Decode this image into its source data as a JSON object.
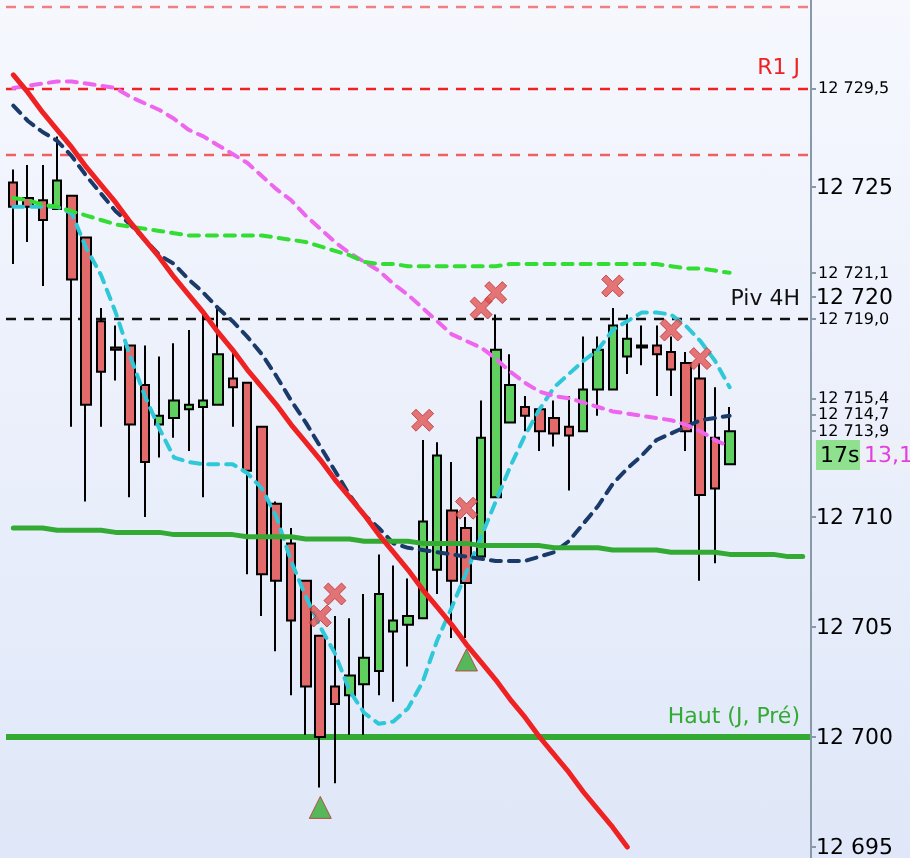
{
  "chart_data": {
    "type": "candlestick",
    "categories": [
      null,
      null,
      null,
      null,
      null,
      null,
      null,
      null,
      null,
      null,
      null,
      null,
      null,
      null,
      null,
      null,
      null,
      null,
      null,
      null,
      null,
      null,
      null,
      null,
      null,
      null,
      null,
      null,
      null,
      null,
      null,
      null,
      null,
      null,
      null,
      null,
      null,
      null,
      null,
      null,
      null,
      null,
      null,
      null,
      null,
      null,
      null,
      null,
      null,
      null,
      null,
      null,
      null,
      null,
      null
    ],
    "ohlc": [
      [
        12725.2,
        12725.8,
        12721.5,
        12724.1
      ],
      [
        12724.5,
        12726.0,
        12722.5,
        12724.1
      ],
      [
        12724.4,
        12726.0,
        12720.5,
        12723.5
      ],
      [
        12724.0,
        12727.3,
        12724.0,
        12725.3
      ],
      [
        12724.6,
        12724.6,
        12714.1,
        12720.8
      ],
      [
        12722.7,
        12722.7,
        12710.7,
        12715.1
      ],
      [
        12718.9,
        12719.5,
        12714.1,
        12716.6
      ],
      [
        12717.7,
        12718.7,
        12716.2,
        12717.6
      ],
      [
        12717.8,
        12717.8,
        12710.9,
        12714.2
      ],
      [
        12716.0,
        12717.8,
        12710.0,
        12712.5
      ],
      [
        12714.2,
        12717.3,
        12712.7,
        12714.6
      ],
      [
        12714.5,
        12717.9,
        12713.6,
        12715.3
      ],
      [
        12714.9,
        12718.5,
        12713.0,
        12715.1
      ],
      [
        12715.0,
        12719.2,
        12710.9,
        12715.3
      ],
      [
        12715.1,
        12719.5,
        12715.1,
        12717.4
      ],
      [
        12716.3,
        12717.5,
        12714.1,
        12715.9
      ],
      [
        12716.1,
        12716.1,
        12707.4,
        12712.1
      ],
      [
        12714.1,
        12714.1,
        12705.5,
        12707.4
      ],
      [
        12710.6,
        12710.7,
        12703.9,
        12707.1
      ],
      [
        12708.8,
        12709.5,
        12701.9,
        12705.3
      ],
      [
        12707.1,
        12707.1,
        12700.1,
        12702.3
      ],
      [
        12704.6,
        12704.6,
        12697.7,
        12700.0
      ],
      [
        12702.3,
        12705.5,
        12697.9,
        12701.5
      ],
      [
        12701.9,
        12705.4,
        12700.1,
        12702.8
      ],
      [
        12702.4,
        12706.5,
        12700.1,
        12703.6
      ],
      [
        12703.0,
        12708.3,
        12701.9,
        12706.5
      ],
      [
        12704.8,
        12707.8,
        12701.6,
        12705.3
      ],
      [
        12705.1,
        12707.2,
        12703.2,
        12705.5
      ],
      [
        12705.4,
        12713.5,
        12705.4,
        12709.8
      ],
      [
        12707.6,
        12713.4,
        12706.5,
        12712.8
      ],
      [
        12710.3,
        12712.5,
        12704.5,
        12707.1
      ],
      [
        12709.5,
        12710.0,
        12704.5,
        12707.0
      ],
      [
        12708.2,
        12715.3,
        12708.2,
        12713.6
      ],
      [
        12710.9,
        12719.2,
        12710.9,
        12717.6
      ],
      [
        12714.3,
        12717.4,
        12714.3,
        12716.0
      ],
      [
        12715.0,
        12715.5,
        12713.9,
        12714.6
      ],
      [
        12714.9,
        12714.9,
        12713.0,
        12713.9
      ],
      [
        12714.5,
        12715.3,
        12713.2,
        12713.8
      ],
      [
        12714.1,
        12715.5,
        12711.2,
        12713.7
      ],
      [
        12713.9,
        12718.2,
        12713.9,
        12715.8
      ],
      [
        12715.8,
        12718.2,
        12714.6,
        12717.6
      ],
      [
        12715.8,
        12719.5,
        12715.8,
        12718.7
      ],
      [
        12717.3,
        12719.2,
        12716.5,
        12718.1
      ],
      [
        12717.7,
        12718.7,
        12716.9,
        12717.8
      ],
      [
        12717.8,
        12718.7,
        12715.5,
        12717.4
      ],
      [
        12717.5,
        12718.2,
        12715.5,
        12716.7
      ],
      [
        12717.0,
        12717.5,
        12713.0,
        12713.9
      ],
      [
        12716.3,
        12717.0,
        12707.1,
        12711.0
      ],
      [
        12713.6,
        12715.9,
        12707.9,
        12711.3
      ],
      [
        12712.4,
        12715.0,
        12712.4,
        12713.9
      ],
      null,
      null,
      null,
      null,
      null
    ],
    "series": [
      {
        "type": "line",
        "color": "#2ec8d8",
        "line_style": "dashed",
        "marker": "none",
        "values": [
          12724.1,
          12724.1,
          12724.1,
          12724.1,
          12723.8,
          12722.2,
          12721.0,
          12719.3,
          12717.3,
          12715.5,
          12714.0,
          12712.7,
          12712.5,
          12712.4,
          12712.4,
          12712.4,
          12712.0,
          12711.3,
          12710.0,
          12708.0,
          12706.4,
          12705.0,
          12703.8,
          12702.1,
          12701.1,
          12700.6,
          12700.7,
          12701.3,
          12702.5,
          12704.4,
          12705.9,
          12707.5,
          12709.1,
          12710.7,
          12712.3,
          12713.7,
          12714.9,
          12715.9,
          12716.5,
          12717.1,
          12717.6,
          12718.5,
          12718.9,
          12719.3,
          12719.3,
          12719.2,
          12718.7,
          12718.0,
          12717.1,
          12715.9,
          null,
          null,
          null,
          null,
          null
        ]
      },
      {
        "type": "line",
        "color": "#1a3a6a",
        "line_style": "dashed",
        "marker": "none",
        "values": [
          12728.7,
          12728.0,
          12727.5,
          12727.1,
          12726.4,
          12725.5,
          12724.7,
          12723.9,
          12723.3,
          12722.6,
          12721.9,
          12721.5,
          12720.8,
          12720.2,
          12719.5,
          12718.9,
          12718.2,
          12717.4,
          12716.4,
          12715.3,
          12714.3,
          12713.2,
          12712.1,
          12711.0,
          12710.1,
          12709.5,
          12708.8,
          12708.6,
          12708.5,
          12708.4,
          12708.3,
          12708.2,
          12708.1,
          12708.0,
          12708.0,
          12708.0,
          12708.2,
          12708.4,
          12708.9,
          12709.7,
          12710.5,
          12711.5,
          12712.2,
          12712.8,
          12713.5,
          12713.8,
          12714.1,
          12714.4,
          12714.5,
          12714.6,
          null,
          null,
          null,
          null,
          null
        ]
      },
      {
        "type": "line",
        "color": "#ee66ee",
        "line_style": "dashed",
        "marker": "none",
        "values": [
          12729.5,
          12729.6,
          12729.7,
          12729.8,
          12729.8,
          12729.7,
          12729.6,
          12729.5,
          12729.1,
          12728.8,
          12728.5,
          12728.1,
          12727.6,
          12727.3,
          12726.9,
          12726.5,
          12726.1,
          12725.5,
          12724.9,
          12724.4,
          12723.7,
          12723.1,
          12722.5,
          12722.0,
          12721.6,
          12721.2,
          12720.6,
          12720.1,
          12719.5,
          12718.9,
          12718.3,
          12718.0,
          12717.7,
          12717.2,
          12716.6,
          12716.1,
          12715.7,
          12715.5,
          12715.4,
          12715.2,
          12715.0,
          12714.8,
          12714.7,
          12714.6,
          12714.5,
          12714.4,
          12714.2,
          12713.9,
          12713.5,
          12713.2,
          null,
          null,
          null,
          null,
          null
        ]
      },
      {
        "type": "line",
        "color": "#33dd33",
        "line_style": "dashed",
        "marker": "none",
        "values": [
          12724.5,
          12724.4,
          12724.2,
          12724.1,
          12723.9,
          12723.7,
          12723.5,
          12723.3,
          12723.2,
          12723.1,
          12723.0,
          12722.9,
          12722.8,
          12722.8,
          12722.8,
          12722.8,
          12722.8,
          12722.8,
          12722.7,
          12722.6,
          12722.5,
          12722.3,
          12722.1,
          12721.9,
          12721.6,
          12721.5,
          12721.5,
          12721.4,
          12721.4,
          12721.4,
          12721.4,
          12721.4,
          12721.4,
          12721.4,
          12721.5,
          12721.5,
          12721.5,
          12721.5,
          12721.5,
          12721.5,
          12721.5,
          12721.5,
          12721.5,
          12721.5,
          12721.5,
          12721.4,
          12721.3,
          12721.3,
          12721.2,
          12721.1,
          null,
          null,
          null,
          null,
          null
        ]
      },
      {
        "type": "line",
        "color": "#33aa33",
        "line_style": "solid",
        "marker": "none",
        "values": [
          12709.5,
          12709.5,
          12709.5,
          12709.4,
          12709.4,
          12709.4,
          12709.4,
          12709.3,
          12709.3,
          12709.3,
          12709.3,
          12709.2,
          12709.2,
          12709.2,
          12709.2,
          12709.2,
          12709.1,
          12709.1,
          12709.1,
          12709.1,
          12709.0,
          12709.0,
          12709.0,
          12709.0,
          12708.9,
          12708.9,
          12708.9,
          12708.9,
          12708.8,
          12708.8,
          12708.8,
          12708.8,
          12708.7,
          12708.7,
          12708.7,
          12708.7,
          12708.7,
          12708.6,
          12708.6,
          12708.6,
          12708.6,
          12708.5,
          12708.5,
          12708.5,
          12708.5,
          12708.4,
          12708.4,
          12708.4,
          12708.4,
          12708.3,
          12708.3,
          12708.3,
          12708.3,
          12708.2,
          12708.2
        ]
      },
      {
        "type": "line",
        "color": "#ee2222",
        "line_style": "solid",
        "marker": "none",
        "values": [
          12730.1,
          12729.3,
          12728.4,
          12727.6,
          12726.8,
          12725.9,
          12725.1,
          12724.3,
          12723.4,
          12722.6,
          12721.8,
          12720.9,
          12720.1,
          12719.3,
          12718.4,
          12717.6,
          12716.7,
          12715.9,
          12715.1,
          12714.2,
          12713.4,
          12712.6,
          12711.7,
          12710.9,
          12710.1,
          12709.2,
          12708.4,
          12707.6,
          12706.7,
          12705.9,
          12705.1,
          12704.2,
          12703.4,
          12702.6,
          12701.7,
          12700.9,
          12700.0,
          12699.2,
          12698.4,
          12697.5,
          12696.7,
          12695.9,
          12695.0,
          null,
          null,
          null,
          null,
          null,
          null,
          null,
          null,
          null,
          null,
          null,
          null
        ]
      },
      {
        "type": "scatter",
        "color": "#e05555",
        "marker": "cross",
        "values": [
          null,
          null,
          null,
          null,
          null,
          null,
          null,
          null,
          null,
          null,
          null,
          null,
          null,
          null,
          null,
          null,
          null,
          null,
          null,
          null,
          null,
          12705.5,
          12706.5,
          null,
          null,
          null,
          null,
          null,
          12714.4,
          null,
          null,
          12710.4,
          12719.5,
          12720.2,
          null,
          null,
          null,
          null,
          null,
          null,
          null,
          12720.5,
          null,
          null,
          null,
          12718.5,
          null,
          12717.2,
          null,
          null,
          null,
          null,
          null,
          null,
          null
        ]
      },
      {
        "type": "scatter",
        "color": "#33aa33",
        "marker": "triangle",
        "values": [
          null,
          null,
          null,
          null,
          null,
          null,
          null,
          null,
          null,
          null,
          null,
          null,
          null,
          null,
          null,
          null,
          null,
          null,
          null,
          null,
          null,
          12696.8,
          null,
          null,
          null,
          null,
          null,
          null,
          null,
          null,
          null,
          12703.5,
          null,
          null,
          null,
          null,
          null,
          null,
          null,
          null,
          null,
          null,
          null,
          null,
          null,
          null,
          null,
          null,
          null,
          null,
          null,
          null,
          null,
          null,
          null
        ]
      }
    ],
    "ylim": [
      12694.5,
      12733.5
    ],
    "yticks": [
      {
        "value": 12695,
        "label": "12 695"
      },
      {
        "value": 12700,
        "label": "12 700"
      },
      {
        "value": 12705,
        "label": "12 705"
      },
      {
        "value": 12710,
        "label": "12 710"
      },
      {
        "value": 12713.9,
        "label": "12 713,9"
      },
      {
        "value": 12714.7,
        "label": "12 714,7"
      },
      {
        "value": 12715.4,
        "label": "12 715,4"
      },
      {
        "value": 12719.0,
        "label": "12 719,0"
      },
      {
        "value": 12720,
        "label": "12 720"
      },
      {
        "value": 12721.1,
        "label": "12 721,1"
      },
      {
        "value": 12725,
        "label": "12 725"
      },
      {
        "value": 12729.5,
        "label": "12 729,5"
      }
    ],
    "tick_labels": "y",
    "ref_lines": [
      {
        "axis": "y",
        "value": 12729.5,
        "label": "R1 J",
        "color": "#ee2222",
        "line_style": "dashed"
      },
      {
        "axis": "y",
        "value": 12733.2,
        "color": "#f08080",
        "line_style": "dashed"
      },
      {
        "axis": "y",
        "value": 12726.5,
        "color": "#f06060",
        "line_style": "dashed"
      },
      {
        "axis": "y",
        "value": 12719.0,
        "label": "Piv 4H",
        "color": "#111111",
        "line_style": "dashed"
      },
      {
        "axis": "y",
        "value": 12700,
        "label": "Haut (J, Pré)",
        "color": "#33aa33",
        "line_style": "solid"
      }
    ],
    "annotations": [
      "17s",
      "13,1"
    ]
  }
}
